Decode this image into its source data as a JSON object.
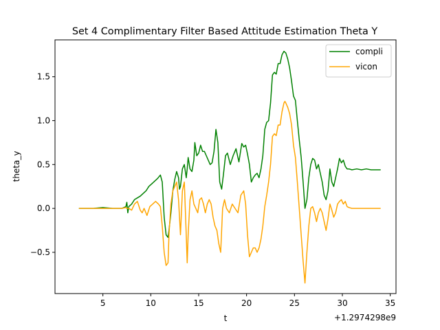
{
  "chart_data": {
    "type": "line",
    "title": "Set 4 Complimentary Filter Based Attitude Estimation Theta Y",
    "xlabel": "t",
    "ylabel": "theta_y",
    "x_offset_text": "+1.2974298e9",
    "xlim": [
      0.0,
      35.6
    ],
    "ylim": [
      -0.97,
      1.92
    ],
    "xticks": [
      5,
      10,
      15,
      20,
      25,
      30,
      35
    ],
    "xtick_labels": [
      "5",
      "10",
      "15",
      "20",
      "25",
      "30",
      "35"
    ],
    "yticks": [
      -0.5,
      0.0,
      0.5,
      1.0,
      1.5
    ],
    "ytick_labels": [
      "−0.5",
      "0.0",
      "0.5",
      "1.0",
      "1.5"
    ],
    "grid": false,
    "legend_position": "top-right",
    "series": [
      {
        "name": "compli",
        "color": "#008000",
        "x": [
          2.5,
          4,
          5,
          6,
          7,
          7.4,
          7.5,
          7.6,
          7.7,
          8.0,
          8.3,
          8.6,
          8.9,
          9.2,
          9.5,
          9.8,
          10.1,
          10.4,
          10.7,
          11.0,
          11.2,
          11.4,
          11.6,
          11.8,
          11.9,
          12.1,
          12.3,
          12.5,
          12.7,
          12.9,
          13.0,
          13.1,
          13.3,
          13.5,
          13.7,
          13.8,
          13.9,
          14.1,
          14.3,
          14.5,
          14.6,
          14.8,
          15.0,
          15.2,
          15.4,
          15.6,
          15.8,
          16.0,
          16.2,
          16.4,
          16.6,
          16.8,
          17.0,
          17.2,
          17.4,
          17.6,
          17.8,
          18.0,
          18.3,
          18.6,
          18.9,
          19.2,
          19.5,
          19.7,
          19.9,
          20.1,
          20.3,
          20.5,
          20.7,
          20.9,
          21.1,
          21.3,
          21.5,
          21.7,
          21.9,
          22.1,
          22.3,
          22.5,
          22.7,
          22.9,
          23.1,
          23.3,
          23.5,
          23.7,
          23.9,
          24.0,
          24.1,
          24.3,
          24.5,
          24.7,
          24.9,
          25.1,
          25.3,
          25.5,
          25.7,
          25.9,
          26.1,
          26.3,
          26.5,
          26.7,
          26.9,
          27.1,
          27.3,
          27.5,
          27.7,
          27.9,
          28.1,
          28.3,
          28.5,
          28.7,
          28.9,
          29.1,
          29.3,
          29.5,
          29.7,
          29.9,
          30.1,
          30.3,
          30.5,
          30.7,
          31.0,
          31.5,
          32.0,
          32.5,
          33.0,
          33.5,
          34.0
        ],
        "y": [
          0.0,
          0.0,
          0.01,
          0.0,
          0.0,
          0.02,
          0.07,
          -0.05,
          0.02,
          0.05,
          0.1,
          0.12,
          0.14,
          0.17,
          0.2,
          0.25,
          0.28,
          0.31,
          0.34,
          0.38,
          0.3,
          -0.1,
          -0.3,
          -0.33,
          -0.25,
          -0.05,
          0.2,
          0.33,
          0.42,
          0.35,
          0.22,
          0.25,
          0.45,
          0.5,
          0.35,
          0.45,
          0.58,
          0.45,
          0.42,
          0.55,
          0.75,
          0.6,
          0.63,
          0.72,
          0.65,
          0.65,
          0.6,
          0.55,
          0.5,
          0.52,
          0.65,
          0.9,
          0.75,
          0.3,
          0.22,
          0.4,
          0.6,
          0.63,
          0.5,
          0.6,
          0.68,
          0.53,
          0.74,
          0.7,
          0.72,
          0.62,
          0.5,
          0.3,
          0.35,
          0.38,
          0.4,
          0.35,
          0.45,
          0.6,
          0.9,
          0.98,
          1.0,
          1.2,
          1.52,
          1.55,
          1.53,
          1.65,
          1.65,
          1.75,
          1.79,
          1.78,
          1.77,
          1.7,
          1.6,
          1.45,
          1.28,
          1.23,
          1.0,
          0.78,
          0.58,
          0.3,
          0.0,
          0.1,
          0.35,
          0.5,
          0.57,
          0.55,
          0.45,
          0.5,
          0.4,
          0.3,
          0.15,
          0.1,
          0.2,
          0.45,
          0.3,
          0.25,
          0.35,
          0.45,
          0.57,
          0.52,
          0.55,
          0.48,
          0.45,
          0.45,
          0.44,
          0.45,
          0.44,
          0.45,
          0.44,
          0.44,
          0.44
        ]
      },
      {
        "name": "vicon",
        "color": "#ffa500",
        "x": [
          2.5,
          4,
          5,
          6,
          7,
          7.4,
          7.5,
          7.6,
          7.7,
          8.0,
          8.3,
          8.6,
          8.9,
          9.1,
          9.3,
          9.6,
          9.9,
          10.2,
          10.5,
          10.8,
          11.0,
          11.2,
          11.4,
          11.6,
          11.8,
          11.9,
          12.1,
          12.3,
          12.5,
          12.7,
          12.9,
          13.0,
          13.1,
          13.3,
          13.5,
          13.7,
          13.8,
          13.9,
          14.1,
          14.3,
          14.5,
          14.7,
          14.9,
          15.1,
          15.3,
          15.5,
          15.7,
          15.9,
          16.1,
          16.3,
          16.5,
          16.7,
          16.9,
          17.1,
          17.3,
          17.5,
          17.7,
          17.9,
          18.2,
          18.5,
          18.8,
          19.1,
          19.4,
          19.7,
          19.9,
          20.1,
          20.3,
          20.5,
          20.7,
          20.9,
          21.1,
          21.3,
          21.5,
          21.7,
          21.9,
          22.1,
          22.3,
          22.5,
          22.7,
          22.9,
          23.1,
          23.3,
          23.5,
          23.7,
          23.9,
          24.0,
          24.1,
          24.3,
          24.5,
          24.7,
          24.9,
          25.1,
          25.3,
          25.5,
          25.7,
          25.9,
          26.1,
          26.3,
          26.5,
          26.7,
          26.9,
          27.1,
          27.3,
          27.5,
          27.7,
          27.9,
          28.1,
          28.3,
          28.5,
          28.7,
          28.9,
          29.1,
          29.3,
          29.5,
          29.7,
          29.9,
          30.1,
          30.3,
          30.5,
          30.7,
          31.0,
          31.5,
          32.0,
          32.5,
          33.0,
          33.5,
          34.0
        ],
        "y": [
          0.0,
          0.0,
          0.0,
          0.0,
          0.0,
          0.01,
          0.0,
          0.0,
          0.0,
          -0.02,
          0.05,
          0.08,
          -0.02,
          -0.05,
          0.0,
          -0.08,
          0.02,
          0.05,
          0.08,
          0.05,
          0.02,
          -0.2,
          -0.5,
          -0.65,
          -0.62,
          -0.3,
          0.05,
          0.2,
          0.25,
          0.3,
          0.1,
          -0.1,
          -0.3,
          0.2,
          0.3,
          -0.3,
          -0.62,
          -0.3,
          0.1,
          0.2,
          0.05,
          0.0,
          -0.05,
          0.1,
          0.12,
          0.05,
          -0.05,
          0.05,
          0.1,
          0.05,
          -0.1,
          -0.2,
          -0.25,
          -0.4,
          -0.5,
          0.0,
          0.1,
          0.0,
          -0.05,
          0.05,
          0.0,
          -0.05,
          0.15,
          0.2,
          0.05,
          -0.3,
          -0.55,
          -0.5,
          -0.45,
          -0.45,
          -0.5,
          -0.45,
          -0.35,
          -0.2,
          0.02,
          0.15,
          0.3,
          0.5,
          0.82,
          0.85,
          0.83,
          0.95,
          0.95,
          1.1,
          1.2,
          1.22,
          1.2,
          1.15,
          1.08,
          0.95,
          0.72,
          0.58,
          0.3,
          0.0,
          -0.3,
          -0.6,
          -0.85,
          -0.5,
          -0.2,
          0.0,
          0.02,
          -0.05,
          -0.15,
          -0.05,
          0.0,
          -0.05,
          -0.15,
          -0.25,
          -0.12,
          0.05,
          -0.02,
          -0.1,
          -0.05,
          0.05,
          0.08,
          0.1,
          0.05,
          0.08,
          0.02,
          0.01,
          0.0,
          0.0,
          0.0,
          0.0,
          0.0,
          0.0,
          0.0
        ]
      }
    ]
  }
}
